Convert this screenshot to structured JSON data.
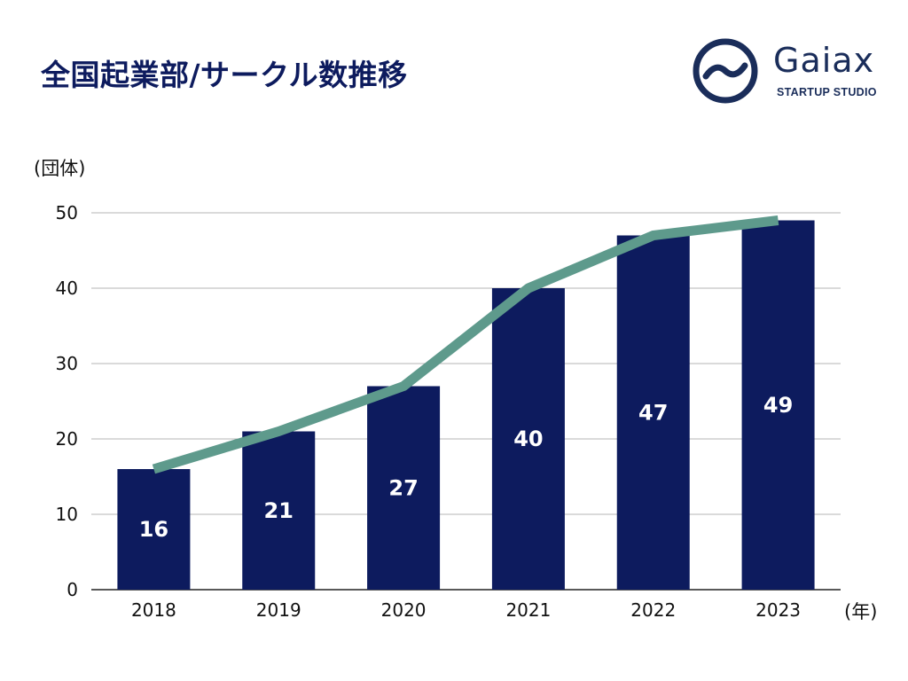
{
  "header": {
    "title": "全国起業部/サークル数推移"
  },
  "logo": {
    "name": "Gaiax",
    "subtitle": "STARTUP STUDIO",
    "color": "#1a2d5a"
  },
  "colors": {
    "bar": "#0d1b5e",
    "line": "#5e9a8c",
    "grid": "#b5b5b5",
    "axis": "#222222",
    "label": "#ffffff"
  },
  "chart_data": {
    "type": "bar",
    "title": "全国起業部/サークル数推移",
    "categories": [
      "2018",
      "2019",
      "2020",
      "2021",
      "2022",
      "2023"
    ],
    "values": [
      16,
      21,
      27,
      40,
      47,
      49
    ],
    "data_labels": [
      "16",
      "21",
      "27",
      "40",
      "47",
      "49"
    ],
    "line_overlay": [
      16,
      21,
      27,
      40,
      47,
      49
    ],
    "ylim": [
      0,
      50
    ],
    "yticks": [
      0,
      10,
      20,
      30,
      40,
      50
    ],
    "ylabel": "(団体)",
    "xlabel": "(年)",
    "grid": true
  }
}
